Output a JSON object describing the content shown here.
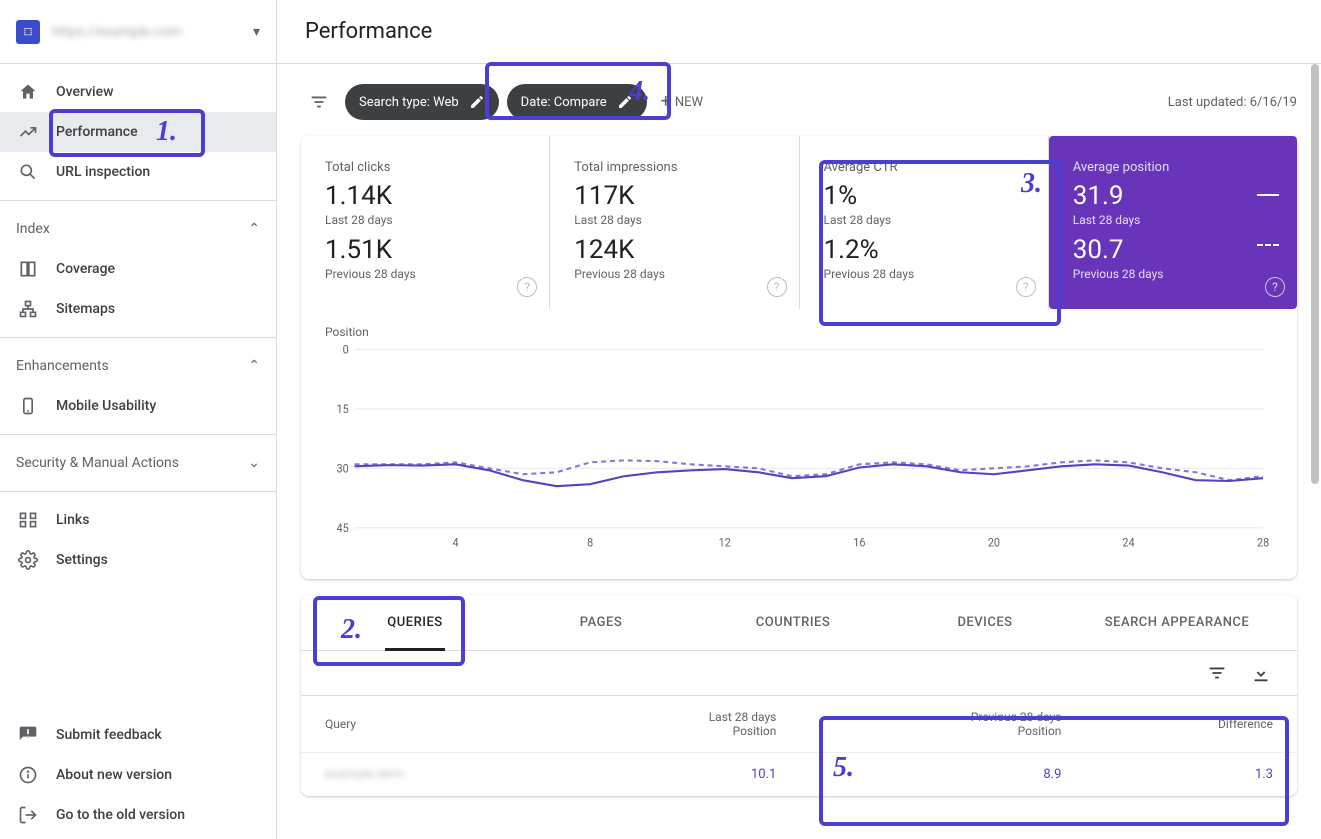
{
  "property": {
    "label": "https://example.com"
  },
  "sidebar": {
    "overview": "Overview",
    "performance": "Performance",
    "url_inspection": "URL inspection",
    "index_header": "Index",
    "coverage": "Coverage",
    "sitemaps": "Sitemaps",
    "enhancements_header": "Enhancements",
    "mobile_usability": "Mobile Usability",
    "security_header": "Security & Manual Actions",
    "links": "Links",
    "settings": "Settings",
    "feedback": "Submit feedback",
    "about": "About new version",
    "old_version": "Go to the old version"
  },
  "page": {
    "title": "Performance"
  },
  "filters": {
    "search_type": "Search type: Web",
    "date": "Date: Compare",
    "new": "NEW",
    "last_updated": "Last updated: 6/16/19"
  },
  "metrics": {
    "period_a": "Last 28 days",
    "period_b": "Previous 28 days",
    "clicks": {
      "title": "Total clicks",
      "a": "1.14K",
      "b": "1.51K",
      "color": "#4285f4"
    },
    "impressions": {
      "title": "Total impressions",
      "a": "117K",
      "b": "124K",
      "color": "#5e35b1"
    },
    "ctr": {
      "title": "Average CTR",
      "a": "1%",
      "b": "1.2%",
      "color": "#0f9d58"
    },
    "position": {
      "title": "Average position",
      "a": "31.9",
      "b": "30.7",
      "color": "#6734ba"
    }
  },
  "chart": {
    "title": "Position",
    "y_ticks": [
      0,
      15,
      30,
      45
    ],
    "x_ticks": [
      4,
      8,
      12,
      16,
      20,
      24,
      28
    ],
    "series_a_color": "#5a3fc0",
    "series_b_color": "#8b73d8",
    "series_a": [
      [
        1,
        29.5
      ],
      [
        2,
        29.2
      ],
      [
        3,
        29.3
      ],
      [
        4,
        29.0
      ],
      [
        5,
        30.5
      ],
      [
        6,
        33.0
      ],
      [
        7,
        34.5
      ],
      [
        8,
        34.0
      ],
      [
        9,
        32.0
      ],
      [
        10,
        31.0
      ],
      [
        11,
        30.5
      ],
      [
        12,
        30.2
      ],
      [
        13,
        31.0
      ],
      [
        14,
        32.5
      ],
      [
        15,
        32.0
      ],
      [
        16,
        29.8
      ],
      [
        17,
        29.0
      ],
      [
        18,
        29.5
      ],
      [
        19,
        31.0
      ],
      [
        20,
        31.5
      ],
      [
        21,
        30.5
      ],
      [
        22,
        29.5
      ],
      [
        23,
        29.0
      ],
      [
        24,
        29.3
      ],
      [
        25,
        31.0
      ],
      [
        26,
        33.0
      ],
      [
        27,
        33.2
      ],
      [
        28,
        32.5
      ]
    ],
    "series_b": [
      [
        1,
        29.0
      ],
      [
        2,
        29.0
      ],
      [
        3,
        29.0
      ],
      [
        4,
        28.5
      ],
      [
        5,
        30.0
      ],
      [
        6,
        31.5
      ],
      [
        7,
        31.0
      ],
      [
        8,
        28.5
      ],
      [
        9,
        28.0
      ],
      [
        10,
        28.2
      ],
      [
        11,
        29.0
      ],
      [
        12,
        29.5
      ],
      [
        13,
        30.0
      ],
      [
        14,
        32.0
      ],
      [
        15,
        31.5
      ],
      [
        16,
        29.0
      ],
      [
        17,
        28.5
      ],
      [
        18,
        29.0
      ],
      [
        19,
        30.5
      ],
      [
        20,
        30.0
      ],
      [
        21,
        29.5
      ],
      [
        22,
        28.5
      ],
      [
        23,
        28.0
      ],
      [
        24,
        28.5
      ],
      [
        25,
        30.0
      ],
      [
        26,
        31.0
      ],
      [
        27,
        33.0
      ],
      [
        28,
        32.0
      ]
    ]
  },
  "tabs": {
    "queries": "QUERIES",
    "pages": "PAGES",
    "countries": "COUNTRIES",
    "devices": "DEVICES",
    "search_appearance": "SEARCH APPEARANCE"
  },
  "table": {
    "col_query": "Query",
    "col_a_top": "Last 28 days",
    "col_a_sub": "Position",
    "col_b_top": "Previous 28 days",
    "col_b_sub": "Position",
    "col_diff": "Difference",
    "rows": [
      {
        "query": "example term",
        "a": "10.1",
        "b": "8.9",
        "diff": "1.3"
      }
    ]
  },
  "annotations": {
    "1": "1.",
    "2": "2.",
    "3": "3.",
    "4": "4.",
    "5": "5."
  }
}
